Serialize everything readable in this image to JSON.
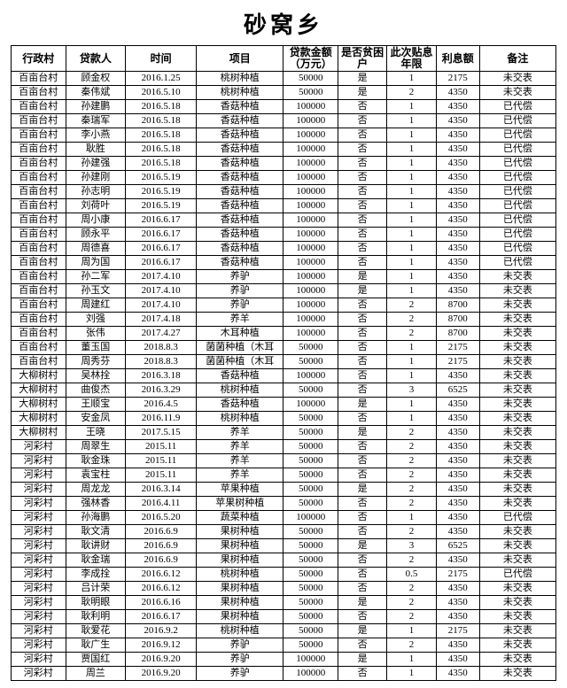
{
  "title": "砂窝乡",
  "columns": [
    "行政村",
    "贷款人",
    "时间",
    "项目",
    "贷款金额（万元）",
    "是否贫困户",
    "此次贴息年限",
    "利息额",
    "备注"
  ],
  "rows": [
    [
      "百亩台村",
      "顾金权",
      "2016.1.25",
      "桃树种植",
      "50000",
      "是",
      "1",
      "2175",
      "未交表"
    ],
    [
      "百亩台村",
      "秦伟斌",
      "2016.5.10",
      "桃树种植",
      "50000",
      "是",
      "2",
      "4350",
      "未交表"
    ],
    [
      "百亩台村",
      "孙建鹏",
      "2016.5.18",
      "香菇种植",
      "100000",
      "否",
      "1",
      "4350",
      "已代偿"
    ],
    [
      "百亩台村",
      "秦瑞军",
      "2016.5.18",
      "香菇种植",
      "100000",
      "否",
      "1",
      "4350",
      "已代偿"
    ],
    [
      "百亩台村",
      "李小燕",
      "2016.5.18",
      "香菇种植",
      "100000",
      "否",
      "1",
      "4350",
      "已代偿"
    ],
    [
      "百亩台村",
      "耿胜",
      "2016.5.18",
      "香菇种植",
      "100000",
      "否",
      "1",
      "4350",
      "已代偿"
    ],
    [
      "百亩台村",
      "孙建强",
      "2016.5.18",
      "香菇种植",
      "100000",
      "否",
      "1",
      "4350",
      "已代偿"
    ],
    [
      "百亩台村",
      "孙建刚",
      "2016.5.19",
      "香菇种植",
      "100000",
      "否",
      "1",
      "4350",
      "已代偿"
    ],
    [
      "百亩台村",
      "孙志明",
      "2016.5.19",
      "香菇种植",
      "100000",
      "否",
      "1",
      "4350",
      "已代偿"
    ],
    [
      "百亩台村",
      "刘荷叶",
      "2016.5.19",
      "香菇种植",
      "100000",
      "否",
      "1",
      "4350",
      "已代偿"
    ],
    [
      "百亩台村",
      "周小康",
      "2016.6.17",
      "香菇种植",
      "100000",
      "否",
      "1",
      "4350",
      "已代偿"
    ],
    [
      "百亩台村",
      "顾永平",
      "2016.6.17",
      "香菇种植",
      "100000",
      "否",
      "1",
      "4350",
      "已代偿"
    ],
    [
      "百亩台村",
      "周德喜",
      "2016.6.17",
      "香菇种植",
      "100000",
      "否",
      "1",
      "4350",
      "已代偿"
    ],
    [
      "百亩台村",
      "周为国",
      "2016.6.17",
      "香菇种植",
      "100000",
      "否",
      "1",
      "4350",
      "已代偿"
    ],
    [
      "百亩台村",
      "孙二军",
      "2017.4.10",
      "养驴",
      "100000",
      "是",
      "1",
      "4350",
      "未交表"
    ],
    [
      "百亩台村",
      "孙玉文",
      "2017.4.10",
      "养驴",
      "100000",
      "是",
      "1",
      "4350",
      "未交表"
    ],
    [
      "百亩台村",
      "周建红",
      "2017.4.10",
      "养驴",
      "100000",
      "否",
      "2",
      "8700",
      "未交表"
    ],
    [
      "百亩台村",
      "刘强",
      "2017.4.18",
      "养羊",
      "100000",
      "否",
      "2",
      "8700",
      "未交表"
    ],
    [
      "百亩台村",
      "张伟",
      "2017.4.27",
      "木耳种植",
      "100000",
      "否",
      "2",
      "8700",
      "未交表"
    ],
    [
      "百亩台村",
      "董玉国",
      "2018.8.3",
      "菌菌种植（木耳",
      "50000",
      "否",
      "1",
      "2175",
      "未交表"
    ],
    [
      "百亩台村",
      "周秀芬",
      "2018.8.3",
      "菌菌种植（木耳",
      "50000",
      "否",
      "1",
      "2175",
      "未交表"
    ],
    [
      "大柳树村",
      "吴林拴",
      "2016.3.18",
      "香菇种植",
      "100000",
      "否",
      "1",
      "4350",
      "未交表"
    ],
    [
      "大柳树村",
      "曲俊杰",
      "2016.3.29",
      "桃树种植",
      "50000",
      "否",
      "3",
      "6525",
      "未交表"
    ],
    [
      "大柳树村",
      "王顺宝",
      "2016.4.5",
      "香菇种植",
      "100000",
      "是",
      "1",
      "4350",
      "未交表"
    ],
    [
      "大柳树村",
      "安金凤",
      "2016.11.9",
      "桃树种植",
      "50000",
      "否",
      "1",
      "4350",
      "未交表"
    ],
    [
      "大柳树村",
      "王晓",
      "2017.5.15",
      "养羊",
      "50000",
      "是",
      "2",
      "4350",
      "未交表"
    ],
    [
      "河彩村",
      "周翠生",
      "2015.11",
      "养羊",
      "50000",
      "否",
      "2",
      "4350",
      "未交表"
    ],
    [
      "河彩村",
      "耿金珠",
      "2015.11",
      "养羊",
      "50000",
      "否",
      "2",
      "4350",
      "未交表"
    ],
    [
      "河彩村",
      "袁宝柱",
      "2015.11",
      "养羊",
      "50000",
      "否",
      "2",
      "4350",
      "未交表"
    ],
    [
      "河彩村",
      "周龙龙",
      "2016.3.14",
      "苹果种植",
      "50000",
      "是",
      "2",
      "4350",
      "未交表"
    ],
    [
      "河彩村",
      "强林香",
      "2016.4.11",
      "苹果树种植",
      "50000",
      "否",
      "2",
      "4350",
      "未交表"
    ],
    [
      "河彩村",
      "孙海鹏",
      "2016.5.20",
      "蔬菜种植",
      "100000",
      "否",
      "1",
      "4350",
      "已代偿"
    ],
    [
      "河彩村",
      "耿文清",
      "2016.6.9",
      "果树种植",
      "50000",
      "否",
      "2",
      "4350",
      "未交表"
    ],
    [
      "河彩村",
      "耿讲财",
      "2016.6.9",
      "果树种植",
      "50000",
      "是",
      "3",
      "6525",
      "未交表"
    ],
    [
      "河彩村",
      "耿金瑞",
      "2016.6.9",
      "果树种植",
      "50000",
      "否",
      "2",
      "4350",
      "未交表"
    ],
    [
      "河彩村",
      "李成拴",
      "2016.6.12",
      "桃树种植",
      "50000",
      "否",
      "0.5",
      "2175",
      "已代偿"
    ],
    [
      "河彩村",
      "吕计荣",
      "2016.6.12",
      "果树种植",
      "50000",
      "否",
      "2",
      "4350",
      "未交表"
    ],
    [
      "河彩村",
      "耿明眼",
      "2016.6.16",
      "果树种植",
      "50000",
      "是",
      "2",
      "4350",
      "未交表"
    ],
    [
      "河彩村",
      "耿利明",
      "2016.6.17",
      "果树种植",
      "50000",
      "否",
      "2",
      "4350",
      "未交表"
    ],
    [
      "河彩村",
      "耿爱花",
      "2016.9.2",
      "桃树种植",
      "50000",
      "是",
      "1",
      "2175",
      "未交表"
    ],
    [
      "河彩村",
      "耿广生",
      "2016.9.12",
      "养驴",
      "50000",
      "否",
      "2",
      "4350",
      "未交表"
    ],
    [
      "河彩村",
      "贾国红",
      "2016.9.20",
      "养驴",
      "100000",
      "是",
      "1",
      "4350",
      "未交表"
    ],
    [
      "河彩村",
      "周兰",
      "2016.9.20",
      "养驴",
      "100000",
      "否",
      "1",
      "4350",
      "未交表"
    ]
  ]
}
